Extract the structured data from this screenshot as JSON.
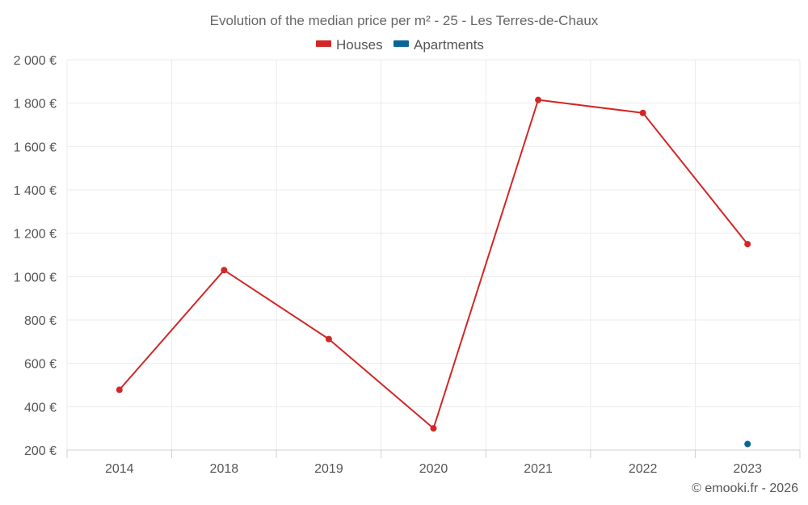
{
  "chart_data": {
    "type": "line",
    "title": "Evolution of the median price per m² - 25 - Les Terres-de-Chaux",
    "categories": [
      "2014",
      "2018",
      "2019",
      "2020",
      "2021",
      "2022",
      "2023"
    ],
    "ylim": [
      200,
      2000
    ],
    "yticks": [
      200,
      400,
      600,
      800,
      1000,
      1200,
      1400,
      1600,
      1800,
      2000
    ],
    "ytick_labels": [
      "200 €",
      "400 €",
      "600 €",
      "800 €",
      "1 000 €",
      "1 200 €",
      "1 400 €",
      "1 600 €",
      "1 800 €",
      "2 000 €"
    ],
    "grid": true,
    "legend_position": "top-center",
    "series": [
      {
        "name": "Houses",
        "color": "#d32626",
        "values": [
          478,
          1030,
          712,
          300,
          1815,
          1755,
          1150
        ]
      },
      {
        "name": "Apartments",
        "color": "#0a6496",
        "values": [
          null,
          null,
          null,
          null,
          null,
          null,
          228
        ]
      }
    ],
    "credit": "© emooki.fr - 2026"
  }
}
